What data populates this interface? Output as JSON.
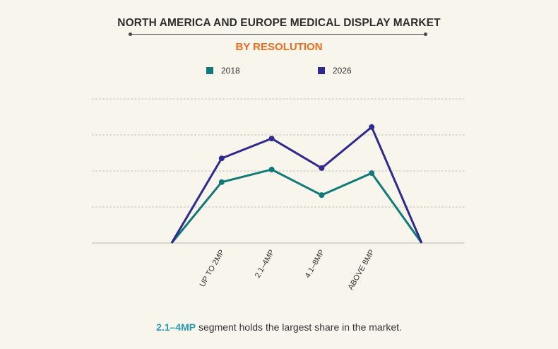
{
  "chart_data": {
    "type": "line",
    "title": "NORTH AMERICA AND EUROPE MEDICAL DISPLAY MARKET",
    "subtitle": "BY RESOLUTION",
    "categories": [
      "",
      "UP TO 2MP",
      "2.1–4MP",
      "4.1–8MP",
      "ABOVE 8MP",
      ""
    ],
    "series": [
      {
        "name": "2018",
        "color": "#107a78",
        "values": [
          0,
          1.69,
          2.04,
          1.33,
          1.94,
          0
        ]
      },
      {
        "name": "2026",
        "color": "#2e2a8f",
        "values": [
          0,
          2.35,
          2.9,
          2.08,
          3.22,
          0
        ]
      }
    ],
    "ylim": [
      0,
      4
    ],
    "grid": true,
    "legend": "top-center",
    "xlabel": "",
    "ylabel": ""
  },
  "footer": {
    "highlight": "2.1–4MP",
    "text": " segment holds the largest share in the market."
  }
}
